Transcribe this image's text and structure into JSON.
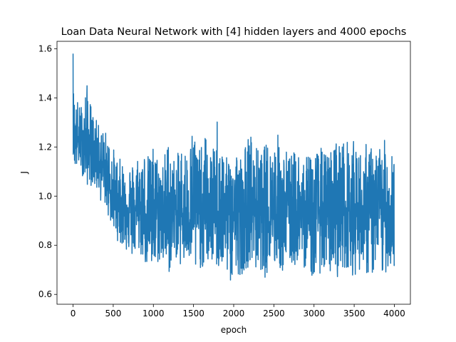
{
  "chart_data": {
    "type": "line",
    "title": "Loan Data Neural Network with [4] hidden layers and 4000 epochs",
    "xlabel": "epoch",
    "ylabel": "J",
    "xlim": [
      -200,
      4200
    ],
    "ylim": [
      0.56,
      1.63
    ],
    "xticks": [
      0,
      500,
      1000,
      1500,
      2000,
      2500,
      3000,
      3500,
      4000
    ],
    "yticks": [
      0.6,
      0.8,
      1.0,
      1.2,
      1.4,
      1.6
    ],
    "xtick_labels": [
      "0",
      "500",
      "1000",
      "1500",
      "2000",
      "2500",
      "3000",
      "3500",
      "4000"
    ],
    "ytick_labels": [
      "0.6",
      "0.8",
      "1.0",
      "1.2",
      "1.4",
      "1.6"
    ],
    "grid": false,
    "series": [
      {
        "color": "#1f77b4",
        "x": [
          0,
          2,
          5,
          10,
          20,
          40,
          60,
          80,
          100,
          120,
          150,
          180,
          200,
          220,
          250,
          280,
          300,
          340,
          400,
          450,
          500,
          550,
          600,
          650,
          700,
          750,
          800,
          850,
          900,
          950,
          1000,
          1050,
          1100,
          1150,
          1200,
          1250,
          1300,
          1350,
          1400,
          1450,
          1500,
          1550,
          1600,
          1650,
          1700,
          1750,
          1800,
          1850,
          1900,
          1950,
          2000,
          2050,
          2100,
          2150,
          2200,
          2250,
          2300,
          2350,
          2400,
          2450,
          2500,
          2550,
          2600,
          2650,
          2700,
          2750,
          2800,
          2850,
          2900,
          2950,
          3000,
          3050,
          3100,
          3150,
          3200,
          3250,
          3300,
          3350,
          3400,
          3450,
          3500,
          3550,
          3600,
          3650,
          3700,
          3750,
          3800,
          3850,
          3900,
          3950,
          4000
        ],
        "y_mean": [
          1.3,
          1.3,
          1.28,
          1.25,
          1.24,
          1.23,
          1.22,
          1.22,
          1.21,
          1.21,
          1.2,
          1.2,
          1.19,
          1.19,
          1.18,
          1.17,
          1.16,
          1.14,
          1.1,
          1.05,
          1.0,
          0.98,
          0.97,
          0.96,
          0.95,
          0.95,
          0.94,
          0.94,
          0.93,
          0.93,
          0.93,
          0.93,
          0.93,
          0.93,
          0.93,
          0.93,
          0.93,
          0.93,
          0.93,
          0.93,
          0.93,
          0.93,
          0.93,
          0.93,
          0.93,
          0.93,
          0.93,
          0.93,
          0.93,
          0.93,
          0.93,
          0.93,
          0.93,
          0.93,
          0.93,
          0.93,
          0.93,
          0.93,
          0.93,
          0.93,
          0.93,
          0.93,
          0.93,
          0.93,
          0.93,
          0.93,
          0.93,
          0.93,
          0.93,
          0.93,
          0.93,
          0.93,
          0.93,
          0.93,
          0.93,
          0.93,
          0.93,
          0.93,
          0.93,
          0.93,
          0.93,
          0.93,
          0.93,
          0.93,
          0.93,
          0.93,
          0.93,
          0.93,
          0.93,
          0.93,
          0.9
        ],
        "y_max": [
          1.58,
          1.58,
          1.45,
          1.44,
          1.42,
          1.38,
          1.4,
          1.37,
          1.38,
          1.36,
          1.44,
          1.46,
          1.42,
          1.38,
          1.34,
          1.32,
          1.3,
          1.28,
          1.27,
          1.24,
          1.2,
          1.16,
          1.15,
          1.15,
          1.14,
          1.14,
          1.18,
          1.19,
          1.2,
          1.16,
          1.22,
          1.17,
          1.15,
          1.19,
          1.26,
          1.16,
          1.17,
          1.22,
          1.2,
          1.2,
          1.34,
          1.2,
          1.2,
          1.26,
          1.17,
          1.2,
          1.36,
          1.22,
          1.15,
          1.18,
          1.24,
          1.2,
          1.16,
          1.22,
          1.28,
          1.21,
          1.2,
          1.18,
          1.22,
          1.22,
          1.24,
          1.26,
          1.2,
          1.2,
          1.18,
          1.18,
          1.2,
          1.2,
          1.14,
          1.26,
          1.18,
          1.2,
          1.2,
          1.18,
          1.18,
          1.24,
          1.24,
          1.24,
          1.22,
          1.26,
          1.22,
          1.2,
          1.18,
          1.22,
          1.2,
          1.22,
          1.2,
          1.24,
          1.22,
          1.23,
          1.3
        ],
        "y_min": [
          1.17,
          1.17,
          1.16,
          1.14,
          1.11,
          1.1,
          1.12,
          1.13,
          1.1,
          1.08,
          1.06,
          1.04,
          1.06,
          1.04,
          1.05,
          1.02,
          1.02,
          0.98,
          0.96,
          0.9,
          0.86,
          0.82,
          0.8,
          0.78,
          0.76,
          0.74,
          0.77,
          0.75,
          0.72,
          0.7,
          0.66,
          0.72,
          0.73,
          0.7,
          0.68,
          0.76,
          0.74,
          0.7,
          0.72,
          0.73,
          0.62,
          0.72,
          0.7,
          0.71,
          0.73,
          0.72,
          0.7,
          0.68,
          0.7,
          0.65,
          0.6,
          0.68,
          0.68,
          0.7,
          0.72,
          0.7,
          0.69,
          0.7,
          0.66,
          0.72,
          0.7,
          0.72,
          0.68,
          0.7,
          0.72,
          0.7,
          0.74,
          0.68,
          0.72,
          0.68,
          0.65,
          0.69,
          0.68,
          0.66,
          0.68,
          0.72,
          0.66,
          0.7,
          0.7,
          0.72,
          0.65,
          0.7,
          0.7,
          0.68,
          0.66,
          0.68,
          0.7,
          0.66,
          0.69,
          0.71,
          0.7
        ]
      }
    ]
  }
}
